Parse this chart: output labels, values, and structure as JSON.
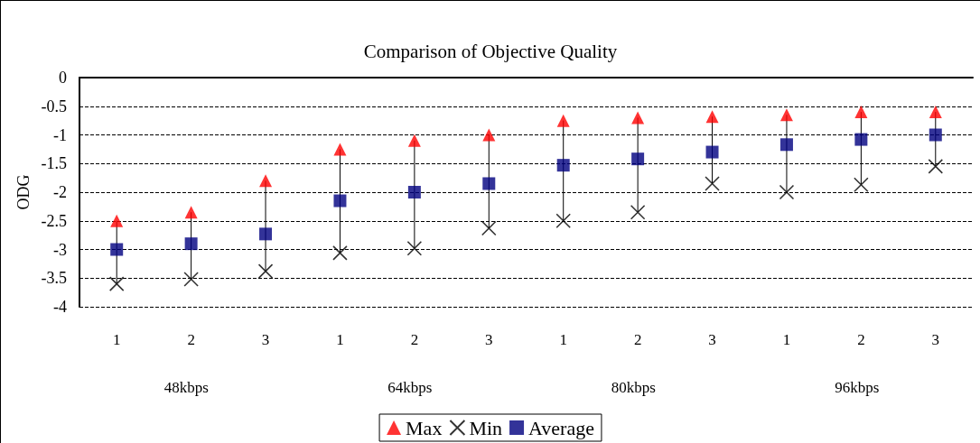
{
  "chart_data": {
    "type": "scatter",
    "title": "Comparison of Objective Quality",
    "ylabel": "ODG",
    "categories": [
      "1",
      "2",
      "3",
      "1",
      "2",
      "3",
      "1",
      "2",
      "3",
      "1",
      "2",
      "3"
    ],
    "annotations": [
      "48kbps",
      "64kbps",
      "80kbps",
      "96kbps"
    ],
    "series": [
      {
        "name": "Max",
        "color": "#ff0000",
        "marker": "triangle",
        "values": [
          -2.5,
          -2.35,
          -1.8,
          -1.25,
          -1.1,
          -1.0,
          -0.75,
          -0.7,
          -0.68,
          -0.65,
          -0.6,
          -0.6
        ]
      },
      {
        "name": "Min",
        "color": "#000000",
        "marker": "cross",
        "values": [
          -3.6,
          -3.52,
          -3.38,
          -3.06,
          -2.98,
          -2.63,
          -2.5,
          -2.35,
          -1.85,
          -2.0,
          -1.87,
          -1.55
        ]
      },
      {
        "name": "Average",
        "color": "#000080",
        "marker": "square",
        "values": [
          -3.0,
          -2.9,
          -2.73,
          -2.15,
          -2.0,
          -1.85,
          -1.53,
          -1.42,
          -1.3,
          -1.17,
          -1.08,
          -1.0
        ]
      }
    ],
    "ylim": [
      -4,
      0
    ],
    "yticks": [
      -4,
      -3.5,
      -3,
      -2.5,
      -2,
      -1.5,
      -1,
      -0.5,
      0
    ],
    "grid": "y",
    "line_style": "dashed",
    "legend": "bottom"
  }
}
